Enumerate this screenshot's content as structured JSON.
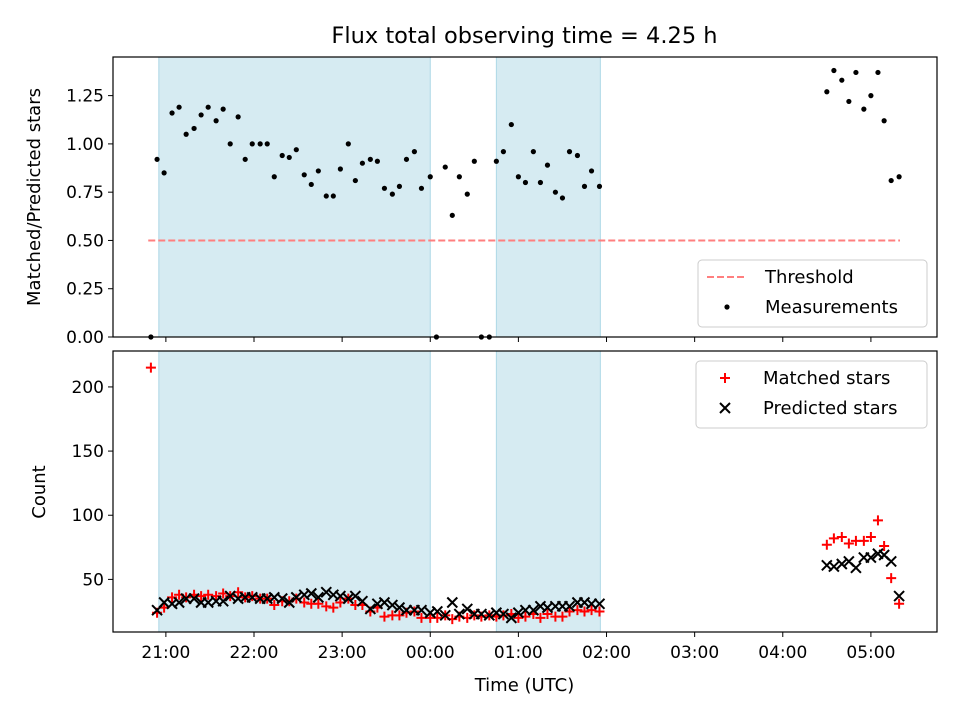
{
  "title": "Flux total observing time = 4.25 h",
  "chart_data": [
    {
      "type": "scatter",
      "panel": "top",
      "ylabel": "Matched/Predicted stars",
      "xlabel": "",
      "x_unit": "hours since 00:00 UTC",
      "xlim": [
        -3.6,
        5.75
      ],
      "ylim": [
        0.0,
        1.45
      ],
      "yticks": [
        0.0,
        0.25,
        0.5,
        0.75,
        1.0,
        1.25
      ],
      "ytick_labels": [
        "0.00",
        "0.25",
        "0.50",
        "0.75",
        "1.00",
        "1.25"
      ],
      "shaded_intervals": [
        [
          -3.08,
          0.0
        ],
        [
          0.75,
          1.93
        ]
      ],
      "shade_color": "#add8e6",
      "series": [
        {
          "name": "Threshold",
          "kind": "dashed-line",
          "color": "#ff7f7f",
          "x": [
            -3.2,
            5.33
          ],
          "y": [
            0.5,
            0.5
          ]
        },
        {
          "name": "Measurements",
          "kind": "dot",
          "color": "#000000",
          "points": [
            [
              -3.17,
              0.0
            ],
            [
              -3.1,
              0.92
            ],
            [
              -3.02,
              0.85
            ],
            [
              -2.93,
              1.16
            ],
            [
              -2.85,
              1.19
            ],
            [
              -2.77,
              1.05
            ],
            [
              -2.68,
              1.08
            ],
            [
              -2.6,
              1.15
            ],
            [
              -2.52,
              1.19
            ],
            [
              -2.43,
              1.12
            ],
            [
              -2.35,
              1.18
            ],
            [
              -2.27,
              1.0
            ],
            [
              -2.18,
              1.14
            ],
            [
              -2.1,
              0.92
            ],
            [
              -2.02,
              1.0
            ],
            [
              -1.93,
              1.0
            ],
            [
              -1.85,
              1.0
            ],
            [
              -1.77,
              0.83
            ],
            [
              -1.68,
              0.94
            ],
            [
              -1.6,
              0.93
            ],
            [
              -1.52,
              0.97
            ],
            [
              -1.43,
              0.84
            ],
            [
              -1.35,
              0.79
            ],
            [
              -1.27,
              0.86
            ],
            [
              -1.18,
              0.73
            ],
            [
              -1.1,
              0.73
            ],
            [
              -1.02,
              0.87
            ],
            [
              -0.93,
              1.0
            ],
            [
              -0.85,
              0.81
            ],
            [
              -0.77,
              0.9
            ],
            [
              -0.68,
              0.92
            ],
            [
              -0.6,
              0.91
            ],
            [
              -0.52,
              0.77
            ],
            [
              -0.43,
              0.74
            ],
            [
              -0.35,
              0.78
            ],
            [
              -0.27,
              0.92
            ],
            [
              -0.18,
              0.96
            ],
            [
              -0.1,
              0.77
            ],
            [
              0.0,
              0.83
            ],
            [
              0.07,
              0.0
            ],
            [
              0.17,
              0.88
            ],
            [
              0.25,
              0.63
            ],
            [
              0.33,
              0.83
            ],
            [
              0.42,
              0.74
            ],
            [
              0.5,
              0.91
            ],
            [
              0.58,
              0.0
            ],
            [
              0.67,
              0.0
            ],
            [
              0.75,
              0.91
            ],
            [
              0.83,
              0.96
            ],
            [
              0.92,
              1.1
            ],
            [
              1.0,
              0.83
            ],
            [
              1.08,
              0.8
            ],
            [
              1.17,
              0.96
            ],
            [
              1.25,
              0.8
            ],
            [
              1.33,
              0.89
            ],
            [
              1.42,
              0.75
            ],
            [
              1.5,
              0.72
            ],
            [
              1.58,
              0.96
            ],
            [
              1.67,
              0.94
            ],
            [
              1.75,
              0.78
            ],
            [
              1.83,
              0.86
            ],
            [
              1.92,
              0.78
            ],
            [
              4.5,
              1.27
            ],
            [
              4.58,
              1.38
            ],
            [
              4.67,
              1.33
            ],
            [
              4.75,
              1.22
            ],
            [
              4.83,
              1.37
            ],
            [
              4.92,
              1.18
            ],
            [
              5.0,
              1.25
            ],
            [
              5.08,
              1.37
            ],
            [
              5.15,
              1.12
            ],
            [
              5.23,
              0.81
            ],
            [
              5.32,
              0.83
            ]
          ]
        }
      ],
      "legend": "lower-right"
    },
    {
      "type": "scatter",
      "panel": "bottom",
      "xlabel": "Time (UTC)",
      "ylabel": "Count",
      "x_unit": "hours since 00:00 UTC",
      "xlim": [
        -3.6,
        5.75
      ],
      "ylim": [
        9,
        228
      ],
      "yticks": [
        50,
        100,
        150,
        200
      ],
      "xticks": [
        -3,
        -2,
        -1,
        0,
        1,
        2,
        3,
        4,
        5
      ],
      "xtick_labels": [
        "21:00",
        "22:00",
        "23:00",
        "00:00",
        "01:00",
        "02:00",
        "03:00",
        "04:00",
        "05:00"
      ],
      "shaded_intervals": [
        [
          -3.08,
          0.0
        ],
        [
          0.75,
          1.93
        ]
      ],
      "shade_color": "#add8e6",
      "series": [
        {
          "name": "Matched stars",
          "marker": "plus",
          "color": "#ff0000",
          "points": [
            [
              -3.17,
              215
            ],
            [
              -3.1,
              24
            ],
            [
              -3.02,
              28
            ],
            [
              -2.93,
              36
            ],
            [
              -2.85,
              38
            ],
            [
              -2.77,
              36
            ],
            [
              -2.68,
              38
            ],
            [
              -2.6,
              37
            ],
            [
              -2.52,
              38
            ],
            [
              -2.43,
              37
            ],
            [
              -2.35,
              39
            ],
            [
              -2.27,
              37
            ],
            [
              -2.18,
              40
            ],
            [
              -2.1,
              36
            ],
            [
              -2.02,
              37
            ],
            [
              -1.93,
              35
            ],
            [
              -1.85,
              35
            ],
            [
              -1.77,
              30
            ],
            [
              -1.68,
              33
            ],
            [
              -1.6,
              33
            ],
            [
              -1.52,
              35
            ],
            [
              -1.43,
              32
            ],
            [
              -1.35,
              31
            ],
            [
              -1.27,
              31
            ],
            [
              -1.18,
              29
            ],
            [
              -1.1,
              28
            ],
            [
              -1.02,
              32
            ],
            [
              -0.93,
              35
            ],
            [
              -0.85,
              30
            ],
            [
              -0.77,
              30
            ],
            [
              -0.68,
              25
            ],
            [
              -0.6,
              28
            ],
            [
              -0.52,
              21
            ],
            [
              -0.43,
              22
            ],
            [
              -0.35,
              22
            ],
            [
              -0.27,
              24
            ],
            [
              -0.18,
              25
            ],
            [
              -0.1,
              20
            ],
            [
              0.0,
              20
            ],
            [
              0.08,
              20
            ],
            [
              0.17,
              22
            ],
            [
              0.25,
              19
            ],
            [
              0.33,
              21
            ],
            [
              0.42,
              20
            ],
            [
              0.5,
              22
            ],
            [
              0.58,
              21
            ],
            [
              0.67,
              22
            ],
            [
              0.75,
              21
            ],
            [
              0.83,
              22
            ],
            [
              0.92,
              23
            ],
            [
              1.0,
              20
            ],
            [
              1.08,
              21
            ],
            [
              1.17,
              23
            ],
            [
              1.25,
              20
            ],
            [
              1.33,
              23
            ],
            [
              1.42,
              21
            ],
            [
              1.5,
              21
            ],
            [
              1.58,
              25
            ],
            [
              1.67,
              26
            ],
            [
              1.75,
              25
            ],
            [
              1.83,
              26
            ],
            [
              1.92,
              25
            ],
            [
              4.5,
              77
            ],
            [
              4.58,
              82
            ],
            [
              4.67,
              83
            ],
            [
              4.75,
              78
            ],
            [
              4.83,
              80
            ],
            [
              4.92,
              80
            ],
            [
              5.0,
              83
            ],
            [
              5.08,
              96
            ],
            [
              5.15,
              76
            ],
            [
              5.23,
              51
            ],
            [
              5.32,
              31
            ]
          ]
        },
        {
          "name": "Predicted stars",
          "marker": "x",
          "color": "#000000",
          "points": [
            [
              -3.1,
              26
            ],
            [
              -3.02,
              32
            ],
            [
              -2.93,
              31
            ],
            [
              -2.85,
              32
            ],
            [
              -2.77,
              35
            ],
            [
              -2.68,
              35
            ],
            [
              -2.6,
              32
            ],
            [
              -2.52,
              32
            ],
            [
              -2.43,
              33
            ],
            [
              -2.35,
              33
            ],
            [
              -2.27,
              37
            ],
            [
              -2.18,
              35
            ],
            [
              -2.1,
              36
            ],
            [
              -2.02,
              36
            ],
            [
              -1.93,
              35
            ],
            [
              -1.85,
              35
            ],
            [
              -1.77,
              36
            ],
            [
              -1.68,
              35
            ],
            [
              -1.6,
              32
            ],
            [
              -1.52,
              36
            ],
            [
              -1.43,
              38
            ],
            [
              -1.35,
              39
            ],
            [
              -1.27,
              36
            ],
            [
              -1.18,
              40
            ],
            [
              -1.1,
              38
            ],
            [
              -1.02,
              37
            ],
            [
              -0.93,
              35
            ],
            [
              -0.85,
              37
            ],
            [
              -0.77,
              33
            ],
            [
              -0.68,
              27
            ],
            [
              -0.6,
              31
            ],
            [
              -0.52,
              32
            ],
            [
              -0.43,
              30
            ],
            [
              -0.35,
              28
            ],
            [
              -0.27,
              26
            ],
            [
              -0.18,
              26
            ],
            [
              -0.1,
              26
            ],
            [
              0.0,
              24
            ],
            [
              0.08,
              25
            ],
            [
              0.17,
              22
            ],
            [
              0.25,
              32
            ],
            [
              0.33,
              23
            ],
            [
              0.42,
              27
            ],
            [
              0.5,
              23
            ],
            [
              0.58,
              23
            ],
            [
              0.67,
              22
            ],
            [
              0.75,
              24
            ],
            [
              0.83,
              23
            ],
            [
              0.92,
              20
            ],
            [
              1.0,
              24
            ],
            [
              1.08,
              26
            ],
            [
              1.17,
              26
            ],
            [
              1.25,
              29
            ],
            [
              1.33,
              28
            ],
            [
              1.42,
              29
            ],
            [
              1.5,
              29
            ],
            [
              1.58,
              29
            ],
            [
              1.67,
              32
            ],
            [
              1.75,
              32
            ],
            [
              1.83,
              31
            ],
            [
              1.92,
              31
            ],
            [
              4.5,
              61
            ],
            [
              4.58,
              60
            ],
            [
              4.67,
              62
            ],
            [
              4.75,
              64
            ],
            [
              4.83,
              59
            ],
            [
              4.92,
              67
            ],
            [
              5.0,
              67
            ],
            [
              5.08,
              70
            ],
            [
              5.15,
              69
            ],
            [
              5.23,
              64
            ],
            [
              5.32,
              37
            ]
          ]
        }
      ],
      "legend": "upper-right"
    }
  ]
}
